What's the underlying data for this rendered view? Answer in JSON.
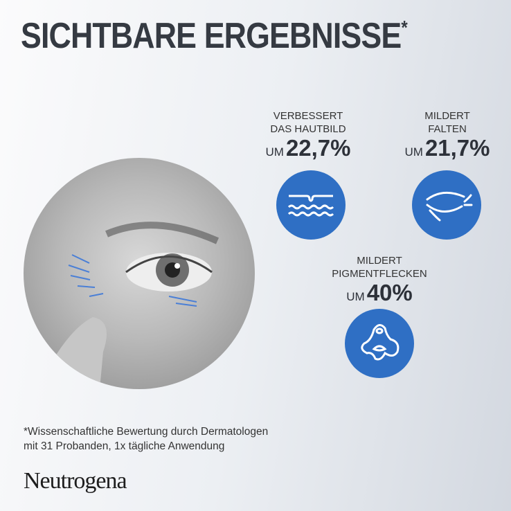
{
  "title": "SICHTBARE ERGEBNISSE",
  "title_mark": "*",
  "stats": [
    {
      "line1": "VERBESSERT",
      "line2": "DAS HAUTBILD",
      "prefix": "UM",
      "value": "22,7%",
      "icon": "skin-texture-icon"
    },
    {
      "line1": "MILDERT",
      "line2": "FALTEN",
      "prefix": "UM",
      "value": "21,7%",
      "icon": "wrinkles-icon"
    },
    {
      "line1": "MILDERT",
      "line2": "PIGMENTFLECKEN",
      "prefix": "UM",
      "value": "40%",
      "icon": "pigment-spot-icon"
    }
  ],
  "footnote": {
    "line1": "*Wissenschaftliche Bewertung durch Dermatologen",
    "line2": "mit 31 Probanden, 1x tägliche Anwendung"
  },
  "brand": "Neutrogena",
  "colors": {
    "accent": "#2f6fc4",
    "title": "#353a42"
  }
}
